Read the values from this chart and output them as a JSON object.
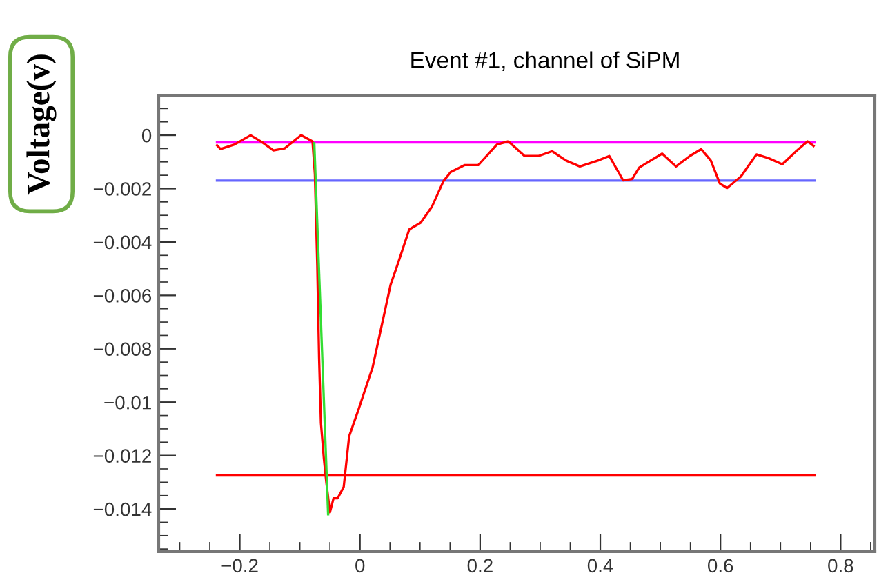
{
  "chart_data": {
    "type": "line",
    "title": "Event #1, channel of SiPM",
    "ylabel": "Voltage(v)",
    "xlim": [
      -0.335,
      0.857
    ],
    "ylim": [
      -0.0156,
      0.0015
    ],
    "xticks": [
      {
        "value": -0.2,
        "label": "−0.2"
      },
      0,
      0.2,
      0.4,
      0.6,
      0.8
    ],
    "yticks": [
      0,
      {
        "value": -0.002,
        "label": "−0.002"
      },
      {
        "value": -0.004,
        "label": "−0.004"
      },
      {
        "value": -0.006,
        "label": "−0.006"
      },
      {
        "value": -0.008,
        "label": "−0.008"
      },
      {
        "value": -0.01,
        "label": "−0.01"
      },
      {
        "value": -0.012,
        "label": "−0.012"
      },
      {
        "value": -0.014,
        "label": "−0.014"
      }
    ],
    "grid": false,
    "series": [
      {
        "color": "#ff00ff",
        "x": [
          -0.238,
          0.757
        ],
        "values": [
          -0.00027,
          -0.00027
        ]
      },
      {
        "color": "#6666ff",
        "x": [
          -0.238,
          0.757
        ],
        "values": [
          -0.0017,
          -0.0017
        ]
      },
      {
        "color": "#ff0000",
        "x": [
          -0.238,
          0.757
        ],
        "values": [
          -0.01275,
          -0.01275
        ]
      },
      {
        "color": "#ff0000",
        "x": [
          -0.238,
          -0.232,
          -0.209,
          -0.182,
          -0.163,
          -0.144,
          -0.125,
          -0.098,
          -0.079,
          -0.075,
          -0.071,
          -0.068,
          -0.065,
          -0.06,
          -0.056,
          -0.05,
          -0.044,
          -0.037,
          -0.027,
          -0.018,
          -0.002,
          0.007,
          0.021,
          0.036,
          0.051,
          0.063,
          0.082,
          0.101,
          0.12,
          0.139,
          0.151,
          0.174,
          0.197,
          0.228,
          0.247,
          0.274,
          0.297,
          0.32,
          0.343,
          0.366,
          0.396,
          0.415,
          0.438,
          0.453,
          0.465,
          0.503,
          0.526,
          0.549,
          0.568,
          0.584,
          0.599,
          0.611,
          0.634,
          0.66,
          0.68,
          0.703,
          0.726,
          0.745,
          0.755
        ],
        "values": [
          -0.00038,
          -0.00052,
          -0.00035,
          0.0,
          -0.00026,
          -0.00057,
          -0.00049,
          0.0,
          -0.00023,
          -0.00147,
          -0.0049,
          -0.00835,
          -0.01077,
          -0.01213,
          -0.013,
          -0.01413,
          -0.0136,
          -0.0136,
          -0.01317,
          -0.01128,
          -0.01025,
          -0.00964,
          -0.0087,
          -0.00715,
          -0.0056,
          -0.00482,
          -0.00353,
          -0.00328,
          -0.00267,
          -0.00172,
          -0.00138,
          -0.00112,
          -0.00112,
          -0.00035,
          -0.00023,
          -0.00078,
          -0.00078,
          -0.0006,
          -0.00095,
          -0.00117,
          -0.00095,
          -0.00078,
          -0.00169,
          -0.00164,
          -0.00121,
          -0.00069,
          -0.00117,
          -0.00078,
          -0.00052,
          -0.00095,
          -0.00181,
          -0.00198,
          -0.00155,
          -0.00072,
          -0.00086,
          -0.00109,
          -0.0006,
          -0.00023,
          -0.0004
        ]
      },
      {
        "color": "#33dd33",
        "x": [
          -0.076,
          -0.053
        ],
        "values": [
          -0.0003,
          -0.0142
        ]
      }
    ]
  }
}
